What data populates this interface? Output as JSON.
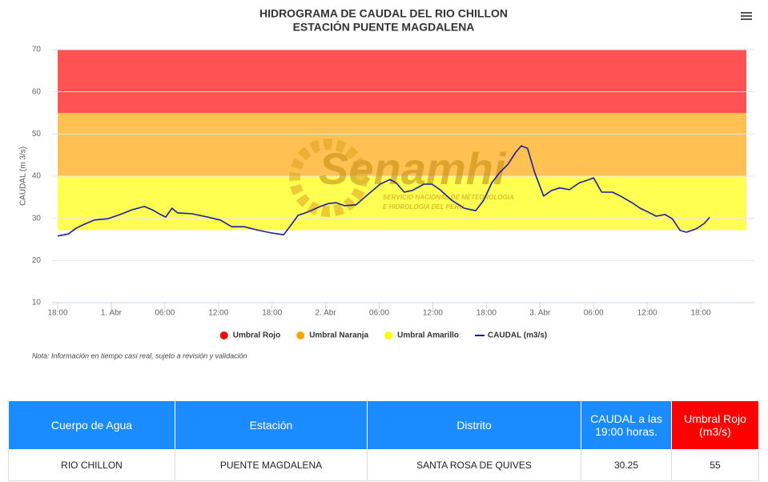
{
  "chart_data": {
    "type": "line",
    "title": "HIDROGRAMA DE CAUDAL DEL RIO CHILLON",
    "subtitle": "ESTACIÓN PUENTE MAGDALENA",
    "y_label": "CAUDAL (m 3/s)",
    "ylim": [
      10,
      70
    ],
    "yticks": [
      10,
      20,
      30,
      40,
      50,
      60,
      70
    ],
    "grid": true,
    "xlim": [
      -0.63,
      78
    ],
    "xticks": [
      {
        "value": 0,
        "label": "18:00"
      },
      {
        "value": 6,
        "label": "1. Abr"
      },
      {
        "value": 12,
        "label": "06:00"
      },
      {
        "value": 18,
        "label": "12:00"
      },
      {
        "value": 24,
        "label": "18:00"
      },
      {
        "value": 30,
        "label": "2. Abr"
      },
      {
        "value": 36,
        "label": "06:00"
      },
      {
        "value": 42,
        "label": "12:00"
      },
      {
        "value": 48,
        "label": "18:00"
      },
      {
        "value": 54,
        "label": "3. Abr"
      },
      {
        "value": 60,
        "label": "06:00"
      },
      {
        "value": 66,
        "label": "12:00"
      },
      {
        "value": 72,
        "label": "18:00"
      }
    ],
    "thresholds": [
      {
        "name": "Umbral Rojo",
        "color": "#ff0000",
        "from": 55,
        "to": 70
      },
      {
        "name": "Umbral Naranja",
        "color": "#ffa500",
        "from": 40,
        "to": 55
      },
      {
        "name": "Umbral Amarillo",
        "color": "#ffff00",
        "from": 27.2,
        "to": 40
      }
    ],
    "series": [
      {
        "name": "CAUDAL (m3/s)",
        "color": "#1c1ca8",
        "x": [
          0,
          1.2,
          2.1,
          3.0,
          4.1,
          5.6,
          7.0,
          8.3,
          9.7,
          10.6,
          11.5,
          12.1,
          12.8,
          13.4,
          15.0,
          16.8,
          18.2,
          19.5,
          20.9,
          22.2,
          24.0,
          25.3,
          26.2,
          26.9,
          28.0,
          29.4,
          30.3,
          31.2,
          32.1,
          33.4,
          34.7,
          36.1,
          37.2,
          37.9,
          38.8,
          39.7,
          41.0,
          41.9,
          42.8,
          44.1,
          45.5,
          46.8,
          47.7,
          48.6,
          49.5,
          50.4,
          51.3,
          51.9,
          52.6,
          53.4,
          54.4,
          55.3,
          56.2,
          57.3,
          58.4,
          59.4,
          60.0,
          60.9,
          62.1,
          63.0,
          64.3,
          65.2,
          66.1,
          67.0,
          68.0,
          68.8,
          69.7,
          70.4,
          71.5,
          72.4,
          73.0
        ],
        "values": [
          25.8,
          26.3,
          27.7,
          28.6,
          29.6,
          29.9,
          30.9,
          32.0,
          32.8,
          32.0,
          30.9,
          30.3,
          32.4,
          31.3,
          31.1,
          30.3,
          29.6,
          28.0,
          28.0,
          27.3,
          26.5,
          26.1,
          28.6,
          30.7,
          31.5,
          32.8,
          33.5,
          33.7,
          33.0,
          33.2,
          35.6,
          38.1,
          39.2,
          38.4,
          36.2,
          36.6,
          38.1,
          38.1,
          36.8,
          34.3,
          32.4,
          31.8,
          34.3,
          38.4,
          40.9,
          42.8,
          45.7,
          47.2,
          46.6,
          40.9,
          35.3,
          36.6,
          37.2,
          36.8,
          38.4,
          39.1,
          39.6,
          36.2,
          36.2,
          35.3,
          33.7,
          32.4,
          31.5,
          30.5,
          30.9,
          29.9,
          27.1,
          26.7,
          27.5,
          28.8,
          30.25
        ]
      }
    ],
    "watermark": {
      "brand": "Senamhi",
      "line1": "SERVICIO NACIONAL DE METEOROLOGIA",
      "line2": "E HIDROLOGIA DEL PERU"
    },
    "note": "Nota: Información en tiempo casi real, sujeto a revisión y validación"
  },
  "table": {
    "header": [
      "Cuerpo de Agua",
      "Estación",
      "Distrito",
      "CAUDAL a las 19:00 horas.",
      "Umbral Rojo (m3/s)"
    ],
    "rows": [
      [
        "RIO CHILLON",
        "PUENTE MAGDALENA",
        "SANTA ROSA DE QUIVES",
        "30.25",
        "55"
      ]
    ]
  }
}
